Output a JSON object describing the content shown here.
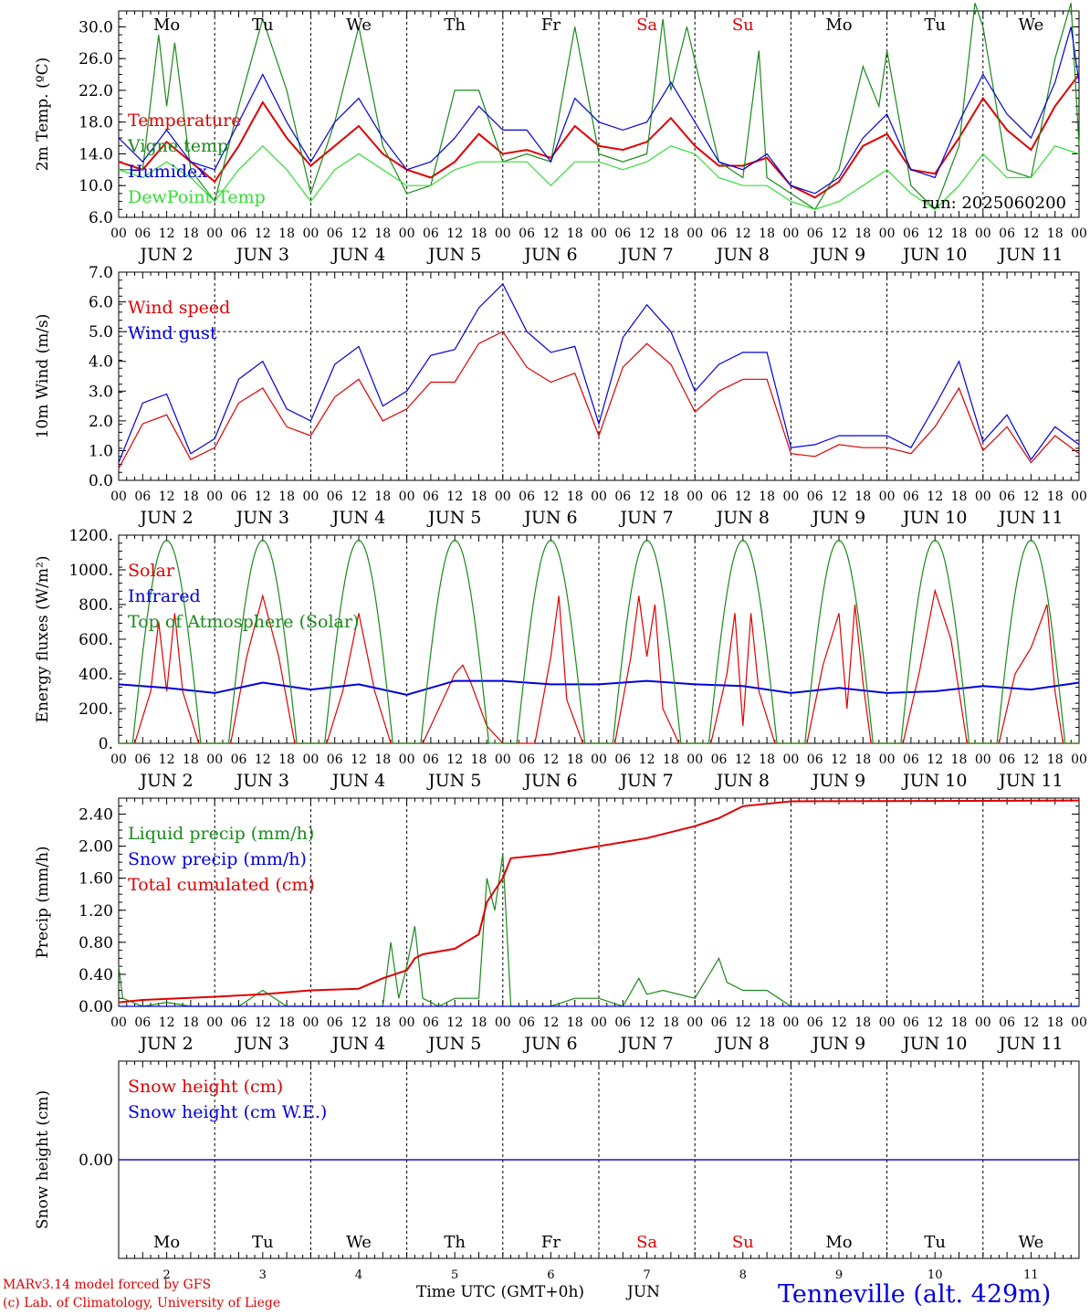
{
  "days": [
    "Mo",
    "Tu",
    "We",
    "Th",
    "Fr",
    "Sa",
    "Su",
    "Mo",
    "Tu",
    "We"
  ],
  "day_colors": [
    "#000000",
    "#000000",
    "#000000",
    "#000000",
    "#000000",
    "#e00000",
    "#e00000",
    "#000000",
    "#000000",
    "#000000"
  ],
  "hour_ticks": [
    "00",
    "06",
    "12",
    "18"
  ],
  "month_label": "JUN",
  "dates": [
    "2",
    "3",
    "4",
    "5",
    "6",
    "7",
    "8",
    "9",
    "10",
    "11"
  ],
  "run_label": "run: 2025060200",
  "footer": {
    "model": "MARv3.14 model forced by GFS",
    "copyright": "(c) Lab. of Climatology, University of Liege",
    "xlabel": "Time UTC (GMT+0h)",
    "month": "JUN",
    "station": "Tenneville (alt. 429m)"
  },
  "chart_data": [
    {
      "type": "line",
      "ylabel": "2m Temp. (ºC)",
      "ylim": [
        6,
        32
      ],
      "yticks": [
        "6.0",
        "10.0",
        "14.0",
        "18.0",
        "22.0",
        "26.0",
        "30.0"
      ],
      "x_unit": "hours since JUN 2 00 UTC",
      "series": [
        {
          "name": "Temperature",
          "color": "#e00000",
          "x": [
            0,
            6,
            12,
            18,
            24,
            30,
            36,
            42,
            48,
            54,
            60,
            66,
            72,
            78,
            84,
            90,
            96,
            102,
            108,
            114,
            120,
            126,
            132,
            138,
            144,
            150,
            156,
            162,
            168,
            174,
            180,
            186,
            192,
            198,
            204,
            210,
            216,
            222,
            228,
            234,
            240
          ],
          "values": [
            13,
            12,
            15.5,
            13,
            10.5,
            15,
            20.5,
            16,
            12.5,
            15,
            17.5,
            14,
            12,
            11,
            13,
            16.5,
            14,
            14.5,
            13.5,
            17.5,
            15,
            14.5,
            15.5,
            18.5,
            15,
            12.5,
            12.5,
            13.5,
            10,
            8.5,
            10.5,
            15,
            16.5,
            12,
            11.5,
            16,
            21,
            17,
            14.5,
            20,
            24
          ]
        },
        {
          "name": "Vigne temp",
          "color": "#1a8a1a",
          "x": [
            0,
            6,
            10,
            12,
            14,
            18,
            24,
            30,
            36,
            42,
            48,
            54,
            58,
            60,
            66,
            72,
            78,
            84,
            90,
            96,
            102,
            108,
            114,
            120,
            126,
            132,
            136,
            138,
            142,
            150,
            156,
            160,
            162,
            168,
            174,
            180,
            186,
            190,
            192,
            198,
            204,
            210,
            214,
            216,
            222,
            228,
            234,
            238,
            240
          ],
          "values": [
            12,
            12,
            29,
            20,
            28,
            12,
            8,
            20,
            31,
            22,
            9,
            18,
            26,
            30,
            15,
            9,
            10,
            22,
            22,
            13,
            14,
            13,
            30,
            14,
            13,
            14,
            31,
            22,
            30,
            13,
            11,
            27,
            11,
            9,
            7,
            12,
            25,
            20,
            27,
            10,
            7,
            15,
            33,
            30,
            12,
            11,
            26,
            33,
            15
          ]
        },
        {
          "name": "Humidex",
          "color": "#0000e0",
          "x": [
            0,
            6,
            12,
            18,
            24,
            30,
            36,
            42,
            48,
            54,
            60,
            66,
            72,
            78,
            84,
            90,
            96,
            102,
            108,
            114,
            120,
            126,
            132,
            138,
            144,
            150,
            156,
            162,
            168,
            174,
            180,
            186,
            192,
            198,
            204,
            210,
            216,
            222,
            228,
            234,
            238,
            240
          ],
          "values": [
            16,
            13,
            17,
            13,
            12,
            18,
            24,
            18,
            13,
            18,
            21,
            16,
            12,
            13,
            16,
            20,
            17,
            17,
            13,
            21,
            18,
            17,
            18,
            23,
            18,
            13,
            12,
            14,
            10,
            9,
            11,
            16,
            19,
            12,
            11,
            18,
            24,
            19,
            16,
            23,
            30,
            23
          ]
        },
        {
          "name": "DewPoint Temp",
          "color": "#33dd33",
          "x": [
            0,
            6,
            12,
            18,
            24,
            30,
            36,
            42,
            48,
            54,
            60,
            66,
            72,
            78,
            84,
            90,
            96,
            102,
            108,
            114,
            120,
            126,
            132,
            138,
            144,
            150,
            156,
            162,
            168,
            174,
            180,
            186,
            192,
            198,
            204,
            210,
            216,
            222,
            228,
            234,
            240
          ],
          "values": [
            12,
            11,
            13,
            11,
            8,
            12,
            15,
            12,
            8,
            12,
            14,
            12,
            10,
            10,
            12,
            13,
            13,
            13,
            10,
            13,
            13,
            12,
            13,
            15,
            14,
            11,
            10,
            10,
            8,
            7,
            8,
            10,
            12,
            9,
            7,
            10,
            14,
            11,
            11,
            15,
            14
          ]
        }
      ]
    },
    {
      "type": "line",
      "ylabel": "10m Wind (m/s)",
      "ylim": [
        0,
        7
      ],
      "yticks": [
        "0.0",
        "1.0",
        "2.0",
        "3.0",
        "4.0",
        "5.0",
        "6.0",
        "7.0"
      ],
      "hline": 5,
      "series": [
        {
          "name": "Wind speed",
          "color": "#e00000",
          "x": [
            0,
            6,
            12,
            18,
            24,
            30,
            36,
            42,
            48,
            54,
            60,
            66,
            72,
            78,
            84,
            90,
            96,
            102,
            108,
            114,
            120,
            126,
            132,
            138,
            144,
            150,
            156,
            162,
            168,
            174,
            180,
            186,
            192,
            198,
            204,
            210,
            216,
            222,
            228,
            234,
            240
          ],
          "values": [
            0.4,
            1.9,
            2.2,
            0.7,
            1.1,
            2.6,
            3.1,
            1.8,
            1.5,
            2.8,
            3.4,
            2.0,
            2.4,
            3.3,
            3.3,
            4.6,
            5.0,
            3.8,
            3.3,
            3.6,
            1.5,
            3.8,
            4.6,
            3.9,
            2.3,
            3.0,
            3.4,
            3.4,
            0.9,
            0.8,
            1.2,
            1.1,
            1.1,
            0.9,
            1.8,
            3.1,
            1.0,
            1.8,
            0.6,
            1.5,
            0.9
          ]
        },
        {
          "name": "Wind gust",
          "color": "#0000e0",
          "x": [
            0,
            6,
            12,
            18,
            24,
            30,
            36,
            42,
            48,
            54,
            60,
            66,
            72,
            78,
            84,
            90,
            96,
            102,
            108,
            114,
            120,
            126,
            132,
            138,
            144,
            150,
            156,
            162,
            168,
            174,
            180,
            186,
            192,
            198,
            204,
            210,
            216,
            222,
            228,
            234,
            240
          ],
          "values": [
            0.6,
            2.6,
            2.9,
            0.9,
            1.4,
            3.4,
            4.0,
            2.4,
            2.0,
            3.9,
            4.5,
            2.5,
            3.0,
            4.2,
            4.4,
            5.8,
            6.6,
            5.0,
            4.3,
            4.5,
            1.9,
            4.8,
            5.9,
            5.0,
            3.0,
            3.9,
            4.3,
            4.3,
            1.1,
            1.2,
            1.5,
            1.5,
            1.5,
            1.1,
            2.5,
            4.0,
            1.3,
            2.2,
            0.7,
            1.8,
            1.2
          ]
        }
      ]
    },
    {
      "type": "line",
      "ylabel": "Energy fluxes (W/m²)",
      "ylim": [
        0,
        1200
      ],
      "yticks": [
        "0.",
        "200.",
        "400.",
        "600.",
        "800.",
        "1000.",
        "1200."
      ],
      "series": [
        {
          "name": "Solar",
          "color": "#e00000",
          "x": [
            0,
            4,
            8,
            10,
            12,
            14,
            16,
            20,
            24,
            28,
            32,
            36,
            40,
            44,
            48,
            52,
            56,
            60,
            64,
            68,
            72,
            76,
            80,
            84,
            86,
            88,
            92,
            96,
            100,
            104,
            108,
            110,
            112,
            116,
            120,
            124,
            128,
            130,
            132,
            134,
            136,
            140,
            144,
            148,
            152,
            154,
            156,
            158,
            160,
            164,
            168,
            172,
            176,
            180,
            182,
            184,
            186,
            188,
            192,
            196,
            200,
            204,
            208,
            212,
            216,
            220,
            224,
            228,
            232,
            234,
            236,
            240
          ],
          "values": [
            0,
            0,
            300,
            700,
            300,
            750,
            300,
            0,
            0,
            0,
            500,
            850,
            500,
            0,
            0,
            0,
            300,
            750,
            300,
            0,
            0,
            0,
            200,
            400,
            450,
            350,
            100,
            0,
            0,
            0,
            500,
            850,
            250,
            0,
            0,
            0,
            500,
            850,
            500,
            800,
            200,
            0,
            0,
            0,
            400,
            750,
            100,
            750,
            300,
            0,
            0,
            0,
            450,
            750,
            200,
            800,
            350,
            0,
            0,
            0,
            400,
            880,
            600,
            0,
            0,
            0,
            400,
            550,
            800,
            300,
            0,
            0
          ]
        },
        {
          "name": "Infrared",
          "color": "#0000e0",
          "x": [
            0,
            12,
            24,
            36,
            48,
            60,
            72,
            84,
            96,
            108,
            120,
            132,
            144,
            156,
            168,
            180,
            192,
            204,
            216,
            228,
            240
          ],
          "values": [
            340,
            320,
            290,
            350,
            310,
            340,
            280,
            360,
            360,
            340,
            340,
            360,
            340,
            330,
            290,
            320,
            290,
            300,
            330,
            310,
            350
          ]
        },
        {
          "name": "Top of Atmosphere (Solar)",
          "color": "#1a8a1a",
          "peak": 1170,
          "sunrise_hour": 3.5,
          "sunset_hour": 20.5
        }
      ]
    },
    {
      "type": "line",
      "ylabel": "Precip (mm/h)",
      "ylim": [
        0,
        2.6
      ],
      "yticks": [
        "0.00",
        "0.40",
        "0.80",
        "1.20",
        "1.60",
        "2.00",
        "2.40"
      ],
      "series": [
        {
          "name": "Liquid precip (mm/h)",
          "color": "#1a8a1a",
          "x": [
            0,
            1,
            6,
            12,
            18,
            24,
            30,
            36,
            42,
            48,
            60,
            66,
            68,
            70,
            72,
            74,
            76,
            80,
            84,
            90,
            92,
            94,
            96,
            98,
            100,
            102,
            104,
            108,
            114,
            120,
            126,
            130,
            132,
            136,
            144,
            150,
            152,
            156,
            162,
            168,
            174,
            240
          ],
          "values": [
            0.5,
            0.1,
            0,
            0.05,
            0,
            0,
            0,
            0.2,
            0,
            0,
            0,
            0,
            0.8,
            0.1,
            0.5,
            1.0,
            0.1,
            0,
            0.1,
            0.1,
            1.6,
            1.2,
            1.9,
            0,
            0,
            0,
            0,
            0,
            0.1,
            0.1,
            0,
            0.35,
            0.15,
            0.2,
            0.1,
            0.6,
            0.3,
            0.2,
            0.2,
            0,
            0,
            0
          ]
        },
        {
          "name": "Snow precip (mm/h)",
          "color": "#0000e0",
          "x": [
            0,
            240
          ],
          "values": [
            0,
            0
          ]
        },
        {
          "name": "Total cumulated (cm)",
          "color": "#e00000",
          "x": [
            0,
            6,
            24,
            36,
            48,
            60,
            66,
            72,
            74,
            76,
            84,
            90,
            92,
            96,
            98,
            102,
            108,
            120,
            132,
            144,
            150,
            156,
            168,
            240
          ],
          "values": [
            0.05,
            0.08,
            0.12,
            0.15,
            0.2,
            0.22,
            0.35,
            0.45,
            0.6,
            0.65,
            0.72,
            0.9,
            1.3,
            1.6,
            1.85,
            1.87,
            1.9,
            2.0,
            2.1,
            2.25,
            2.35,
            2.5,
            2.56,
            2.57
          ]
        }
      ]
    },
    {
      "type": "line",
      "ylabel": "Snow height (cm)",
      "ylim": [
        -1,
        1
      ],
      "yticks": [
        "0.00"
      ],
      "series": [
        {
          "name": "Snow height (cm)",
          "color": "#e00000",
          "x": [
            0,
            240
          ],
          "values": [
            0,
            0
          ]
        },
        {
          "name": "Snow height (cm W.E.)",
          "color": "#0000e0",
          "x": [
            0,
            240
          ],
          "values": [
            0,
            0
          ]
        }
      ]
    }
  ]
}
